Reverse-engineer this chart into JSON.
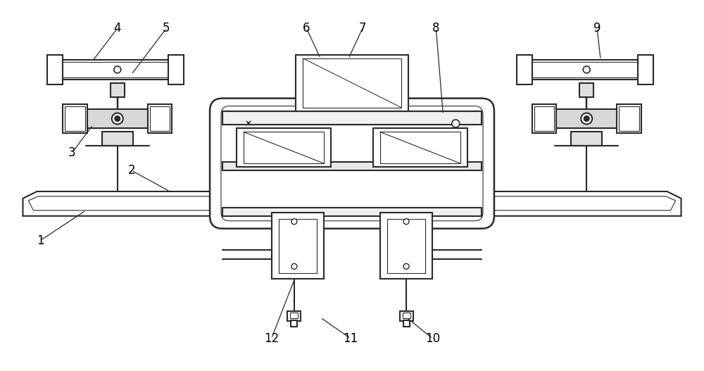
{
  "bg_color": "#ffffff",
  "line_color": "#2a2a2a",
  "lw_main": 1.5,
  "lw_thin": 0.8,
  "figsize": [
    10.0,
    5.27
  ],
  "dpi": 100
}
